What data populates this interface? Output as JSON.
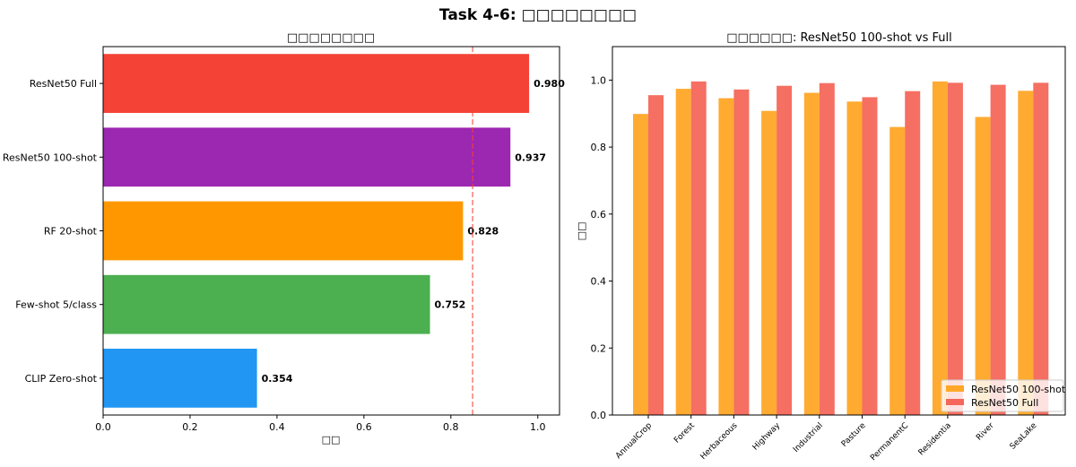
{
  "figure_title": "Task 4-6: □□□□□□□□",
  "chart_data": [
    {
      "type": "bar",
      "orientation": "horizontal",
      "title": "□□□□□□□□",
      "xlabel": "□□",
      "ylabel": "",
      "xlim": [
        0,
        1.05
      ],
      "xticks": [
        "0.0",
        "0.2",
        "0.4",
        "0.6",
        "0.8",
        "1.0"
      ],
      "categories": [
        "ResNet50 Full",
        "ResNet50 100-shot",
        "RF 20-shot",
        "Few-shot 5/class",
        "CLIP Zero-shot"
      ],
      "values": [
        0.98,
        0.937,
        0.828,
        0.752,
        0.354
      ],
      "labels": [
        "0.980",
        "0.937",
        "0.828",
        "0.752",
        "0.354"
      ],
      "colors": [
        "#f44336",
        "#9c27b0",
        "#ff9800",
        "#4caf50",
        "#2196f3"
      ],
      "reference_line": {
        "x": 0.85,
        "color": "#f44336",
        "style": "dashed"
      },
      "grid": false
    },
    {
      "type": "bar",
      "title": "□□□□□□: ResNet50 100-shot vs Full",
      "xlabel": "",
      "ylabel": "□□",
      "ylim": [
        0,
        1.1
      ],
      "yticks": [
        "0.0",
        "0.2",
        "0.4",
        "0.6",
        "0.8",
        "1.0"
      ],
      "categories": [
        "AnnualCrop",
        "Forest",
        "Herbaceous",
        "Highway",
        "Industrial",
        "Pasture",
        "PermanentC",
        "Residentia",
        "River",
        "SeaLake"
      ],
      "series": [
        {
          "name": "ResNet50 100-shot",
          "color": "#ffa726",
          "values": [
            0.899,
            0.974,
            0.946,
            0.908,
            0.962,
            0.936,
            0.86,
            0.996,
            0.89,
            0.968
          ]
        },
        {
          "name": "ResNet50 Full",
          "color": "#f4675a",
          "values": [
            0.955,
            0.996,
            0.972,
            0.983,
            0.991,
            0.949,
            0.967,
            0.992,
            0.986,
            0.992
          ]
        }
      ],
      "legend": "lower-right",
      "grid": false
    }
  ]
}
